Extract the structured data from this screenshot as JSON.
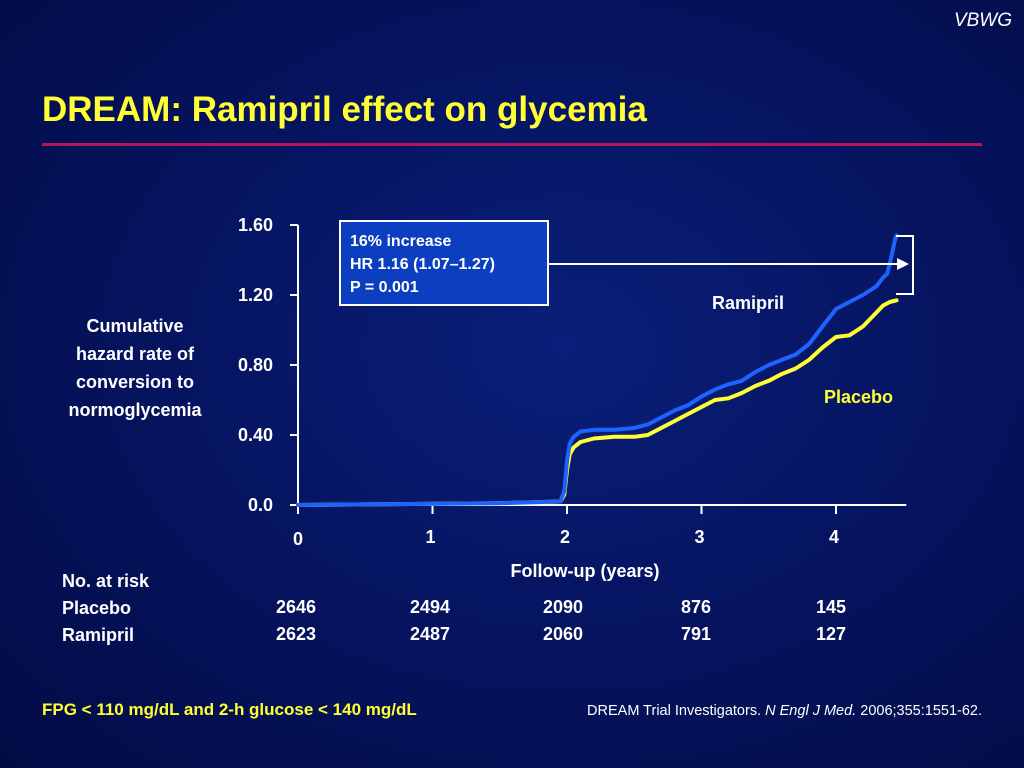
{
  "brand": "VBWG",
  "title": "DREAM: Ramipril effect on glycemia",
  "colors": {
    "title": "#ffff33",
    "rule": "#b0185a",
    "ramipril": "#1e63ff",
    "placebo": "#ffff33",
    "annotation_box": "#0b3fbf"
  },
  "ylabel_lines": [
    "Cumulative",
    "hazard rate of",
    "conversion to",
    "normoglycemia"
  ],
  "chart_data": {
    "type": "line",
    "xlabel": "Follow-up (years)",
    "ylabel": "Cumulative hazard rate of conversion to normoglycemia",
    "xlim": [
      0,
      4.5
    ],
    "ylim": [
      0,
      1.6
    ],
    "x_ticks": [
      "0",
      "1",
      "2",
      "3",
      "4"
    ],
    "y_ticks": [
      "0.0",
      "0.40",
      "0.80",
      "1.20",
      "1.60"
    ],
    "series": [
      {
        "name": "Ramipril",
        "color": "#1e63ff",
        "x": [
          0,
          1.5,
          1.95,
          1.98,
          2.0,
          2.02,
          2.05,
          2.1,
          2.2,
          2.35,
          2.5,
          2.6,
          2.7,
          2.8,
          2.9,
          3.0,
          3.1,
          3.2,
          3.3,
          3.4,
          3.5,
          3.6,
          3.7,
          3.8,
          3.9,
          4.0,
          4.1,
          4.2,
          4.3,
          4.35,
          4.38,
          4.4,
          4.42,
          4.44,
          4.45
        ],
        "y": [
          0,
          0.01,
          0.02,
          0.08,
          0.25,
          0.35,
          0.39,
          0.42,
          0.43,
          0.43,
          0.44,
          0.46,
          0.5,
          0.54,
          0.57,
          0.62,
          0.66,
          0.69,
          0.71,
          0.76,
          0.8,
          0.83,
          0.86,
          0.92,
          1.02,
          1.12,
          1.16,
          1.2,
          1.25,
          1.3,
          1.32,
          1.38,
          1.45,
          1.52,
          1.54
        ]
      },
      {
        "name": "Placebo",
        "color": "#ffff33",
        "x": [
          0,
          1.5,
          1.95,
          1.98,
          2.0,
          2.02,
          2.05,
          2.1,
          2.2,
          2.35,
          2.5,
          2.6,
          2.7,
          2.8,
          2.9,
          3.0,
          3.1,
          3.2,
          3.3,
          3.4,
          3.5,
          3.6,
          3.7,
          3.8,
          3.9,
          4.0,
          4.1,
          4.2,
          4.3,
          4.35,
          4.4,
          4.45
        ],
        "y": [
          0,
          0.01,
          0.02,
          0.06,
          0.2,
          0.29,
          0.33,
          0.36,
          0.38,
          0.39,
          0.39,
          0.4,
          0.44,
          0.48,
          0.52,
          0.56,
          0.6,
          0.61,
          0.64,
          0.68,
          0.71,
          0.75,
          0.78,
          0.83,
          0.9,
          0.96,
          0.97,
          1.02,
          1.1,
          1.14,
          1.16,
          1.17
        ]
      }
    ],
    "series_labels": [
      {
        "text": "Ramipril",
        "color": "#ffffff"
      },
      {
        "text": "Placebo",
        "color": "#ffff33"
      }
    ],
    "annotation": [
      "16% increase",
      "HR 1.16 (1.07–1.27)",
      "P = 0.001"
    ]
  },
  "at_risk": {
    "header": "No. at risk",
    "rows": [
      {
        "label": "Placebo",
        "values": [
          "2646",
          "2494",
          "2090",
          "876",
          "145"
        ]
      },
      {
        "label": "Ramipril",
        "values": [
          "2623",
          "2487",
          "2060",
          "791",
          "127"
        ]
      }
    ]
  },
  "footer": {
    "criteria": "FPG < 110 mg/dL and 2-h glucose < 140 mg/dL",
    "citation_authors": "DREAM Trial Investigators.",
    "citation_journal": "N Engl J Med.",
    "citation_ref": "2006;355:1551-62."
  }
}
